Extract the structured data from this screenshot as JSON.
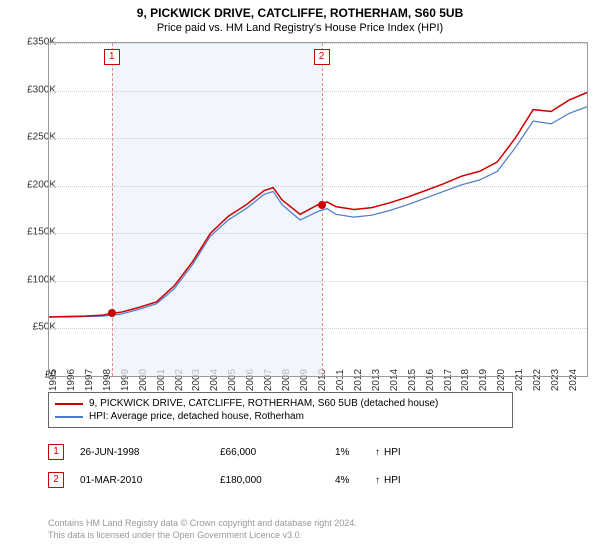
{
  "title": "9, PICKWICK DRIVE, CATCLIFFE, ROTHERHAM, S60 5UB",
  "subtitle": "Price paid vs. HM Land Registry's House Price Index (HPI)",
  "chart": {
    "type": "line",
    "background_color": "#ffffff",
    "grid_color": "#cccccc",
    "border_color": "#999999",
    "shaded_region_color": "#eaf2fa",
    "x_axis": {
      "min_year": 1995,
      "max_year": 2025,
      "ticks": [
        1995,
        1996,
        1997,
        1998,
        1999,
        2000,
        2001,
        2002,
        2003,
        2004,
        2005,
        2006,
        2007,
        2008,
        2009,
        2010,
        2011,
        2012,
        2013,
        2014,
        2015,
        2016,
        2017,
        2018,
        2019,
        2020,
        2021,
        2022,
        2023,
        2024
      ],
      "label_fontsize": 10
    },
    "y_axis": {
      "min": 0,
      "max": 350000,
      "tick_step": 50000,
      "tick_labels": [
        "£0",
        "£50K",
        "£100K",
        "£150K",
        "£200K",
        "£250K",
        "£300K",
        "£350K"
      ],
      "label_fontsize": 10
    },
    "shaded_region": {
      "start_year": 1998.5,
      "end_year": 2010.2
    },
    "series": [
      {
        "name": "property",
        "label": "9, PICKWICK DRIVE, CATCLIFFE, ROTHERHAM, S60 5UB (detached house)",
        "color": "#cc0000",
        "line_width": 1.5,
        "data": [
          [
            1995,
            62000
          ],
          [
            1996,
            62500
          ],
          [
            1997,
            63000
          ],
          [
            1998,
            64000
          ],
          [
            1998.5,
            66000
          ],
          [
            1999,
            67000
          ],
          [
            2000,
            72000
          ],
          [
            2001,
            78000
          ],
          [
            2002,
            95000
          ],
          [
            2003,
            120000
          ],
          [
            2004,
            150000
          ],
          [
            2005,
            168000
          ],
          [
            2006,
            180000
          ],
          [
            2007,
            195000
          ],
          [
            2007.5,
            198000
          ],
          [
            2008,
            185000
          ],
          [
            2009,
            170000
          ],
          [
            2010,
            180000
          ],
          [
            2010.5,
            183000
          ],
          [
            2011,
            178000
          ],
          [
            2012,
            175000
          ],
          [
            2013,
            177000
          ],
          [
            2014,
            182000
          ],
          [
            2015,
            188000
          ],
          [
            2016,
            195000
          ],
          [
            2017,
            202000
          ],
          [
            2018,
            210000
          ],
          [
            2019,
            215000
          ],
          [
            2020,
            225000
          ],
          [
            2021,
            250000
          ],
          [
            2022,
            280000
          ],
          [
            2023,
            278000
          ],
          [
            2024,
            290000
          ],
          [
            2025,
            298000
          ]
        ]
      },
      {
        "name": "hpi",
        "label": "HPI: Average price, detached house, Rotherham",
        "color": "#4a7bc8",
        "line_width": 1.2,
        "data": [
          [
            1995,
            62000
          ],
          [
            1996,
            62000
          ],
          [
            1997,
            62500
          ],
          [
            1998,
            63000
          ],
          [
            1998.5,
            64000
          ],
          [
            1999,
            65000
          ],
          [
            2000,
            70000
          ],
          [
            2001,
            76000
          ],
          [
            2002,
            92000
          ],
          [
            2003,
            117000
          ],
          [
            2004,
            147000
          ],
          [
            2005,
            164000
          ],
          [
            2006,
            176000
          ],
          [
            2007,
            191000
          ],
          [
            2007.5,
            194000
          ],
          [
            2008,
            180000
          ],
          [
            2009,
            164000
          ],
          [
            2010,
            173000
          ],
          [
            2010.5,
            176000
          ],
          [
            2011,
            170000
          ],
          [
            2012,
            167000
          ],
          [
            2013,
            169000
          ],
          [
            2014,
            174000
          ],
          [
            2015,
            180000
          ],
          [
            2016,
            187000
          ],
          [
            2017,
            194000
          ],
          [
            2018,
            201000
          ],
          [
            2019,
            206000
          ],
          [
            2020,
            215000
          ],
          [
            2021,
            240000
          ],
          [
            2022,
            268000
          ],
          [
            2023,
            265000
          ],
          [
            2024,
            276000
          ],
          [
            2025,
            283000
          ]
        ]
      }
    ],
    "transactions": [
      {
        "id": "1",
        "year": 1998.5,
        "date": "26-JUN-1998",
        "price": 66000,
        "price_label": "£66,000",
        "hpi_diff": "1%",
        "hpi_arrow": "↑",
        "color": "#cc0000",
        "line_color": "#e28a8a"
      },
      {
        "id": "2",
        "year": 2010.2,
        "date": "01-MAR-2010",
        "price": 180000,
        "price_label": "£180,000",
        "hpi_diff": "4%",
        "hpi_arrow": "↑",
        "color": "#cc0000",
        "line_color": "#e28a8a"
      }
    ]
  },
  "legend": {
    "border_color": "#666666"
  },
  "hpi_label": "HPI",
  "attribution": {
    "line1": "Contains HM Land Registry data © Crown copyright and database right 2024.",
    "line2": "This data is licensed under the Open Government Licence v3.0."
  }
}
